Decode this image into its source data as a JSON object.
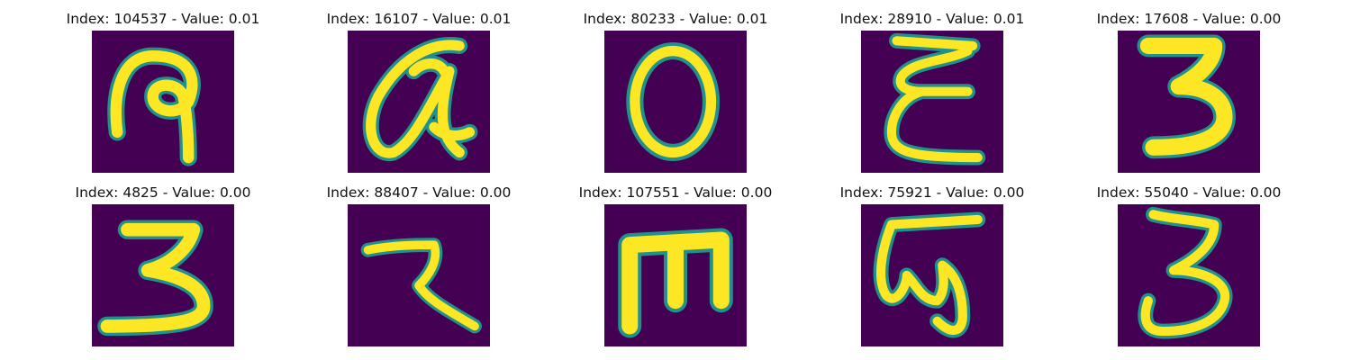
{
  "panels": [
    {
      "title": "Index: 104537 - Value: 0.01",
      "glyph": "handwritten-glyph-q-loop"
    },
    {
      "title": "Index: 16107 - Value: 0.01",
      "glyph": "handwritten-glyph-a-loop"
    },
    {
      "title": "Index: 80233 - Value: 0.01",
      "glyph": "handwritten-glyph-o"
    },
    {
      "title": "Index: 28910 - Value: 0.01",
      "glyph": "handwritten-glyph-e"
    },
    {
      "title": "Index: 17608 - Value: 0.00",
      "glyph": "handwritten-glyph-3"
    },
    {
      "title": "Index: 4825 - Value: 0.00",
      "glyph": "handwritten-glyph-3"
    },
    {
      "title": "Index: 88407 - Value: 0.00",
      "glyph": "handwritten-glyph-z"
    },
    {
      "title": "Index: 107551 - Value: 0.00",
      "glyph": "handwritten-glyph-m-rotated"
    },
    {
      "title": "Index: 75921 - Value: 0.00",
      "glyph": "handwritten-glyph-w-hook"
    },
    {
      "title": "Index: 55040 - Value: 0.00",
      "glyph": "handwritten-glyph-3-open"
    }
  ],
  "colors": {
    "background": "#440154",
    "stroke": "#fde725",
    "stroke_edge": "#21918c"
  }
}
